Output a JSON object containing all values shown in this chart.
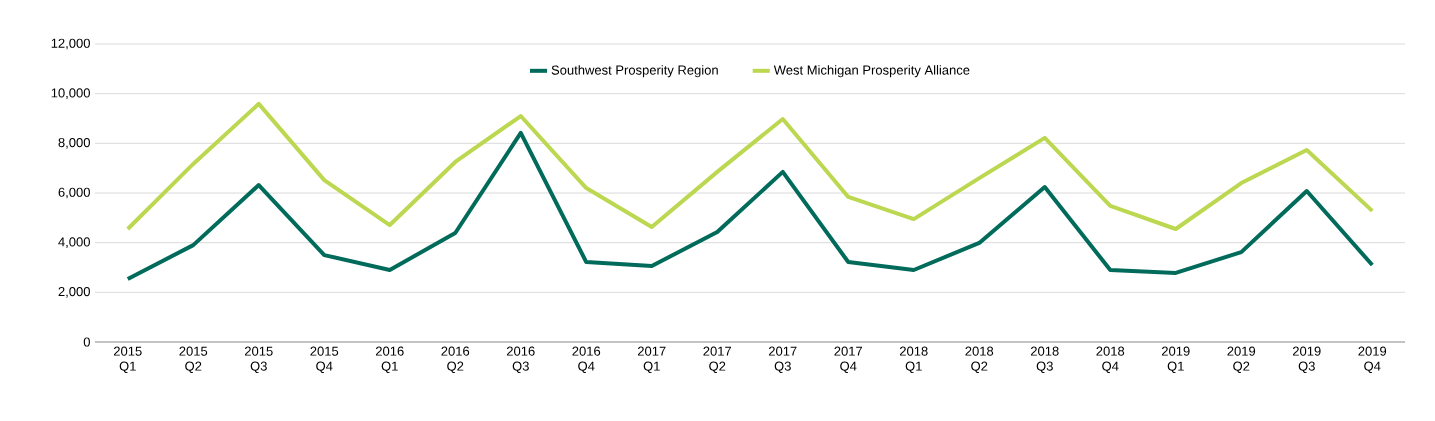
{
  "chart_data": {
    "type": "line",
    "categories": [
      "2015 Q1",
      "2015 Q2",
      "2015 Q3",
      "2015 Q4",
      "2016 Q1",
      "2016 Q2",
      "2016 Q3",
      "2016 Q4",
      "2017 Q1",
      "2017 Q2",
      "2017 Q3",
      "2017 Q4",
      "2018 Q1",
      "2018 Q2",
      "2018 Q3",
      "2018 Q4",
      "2019 Q1",
      "2019 Q2",
      "2019 Q3",
      "2019 Q4"
    ],
    "series": [
      {
        "name": "Southwest Prosperity Region",
        "color": "#006b5a",
        "values": [
          2540,
          3900,
          6320,
          3500,
          2900,
          4390,
          8420,
          3220,
          3060,
          4430,
          6850,
          3220,
          2900,
          3990,
          6240,
          2900,
          2780,
          3620,
          6080,
          3100
        ]
      },
      {
        "name": "West Michigan Prosperity Alliance",
        "color": "#bcd750",
        "values": [
          4550,
          7170,
          9590,
          6520,
          4710,
          7250,
          9100,
          6200,
          4630,
          6850,
          8980,
          5840,
          4950,
          6600,
          8220,
          5480,
          4550,
          6400,
          7730,
          5280
        ]
      }
    ],
    "ylim": [
      0,
      12000
    ],
    "yticks": [
      {
        "value": 0,
        "label": "0"
      },
      {
        "value": 2000,
        "label": "2,000"
      },
      {
        "value": 4000,
        "label": "4,000"
      },
      {
        "value": 6000,
        "label": "6,000"
      },
      {
        "value": 8000,
        "label": "8,000"
      },
      {
        "value": 10000,
        "label": "10,000"
      },
      {
        "value": 12000,
        "label": "12,000"
      }
    ],
    "grid": "y",
    "legend": "top",
    "marker": "none",
    "line_style": "solid"
  }
}
